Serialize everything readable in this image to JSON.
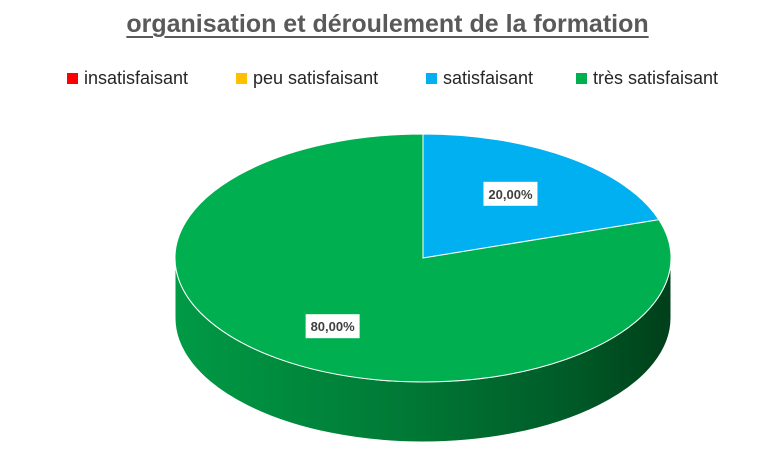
{
  "chart_data": {
    "type": "pie",
    "title": "organisation et déroulement de la formation",
    "categories": [
      "insatisfaisant",
      "peu satisfaisant",
      "satisfaisant",
      "très satisfaisant"
    ],
    "values": [
      0,
      0,
      20,
      80
    ],
    "labels": [
      "",
      "",
      "20,00%",
      "80,00%"
    ],
    "colors": [
      "#ff0000",
      "#ffc000",
      "#00b0f0",
      "#00b050"
    ],
    "legend_position": "top",
    "three_d": true
  }
}
